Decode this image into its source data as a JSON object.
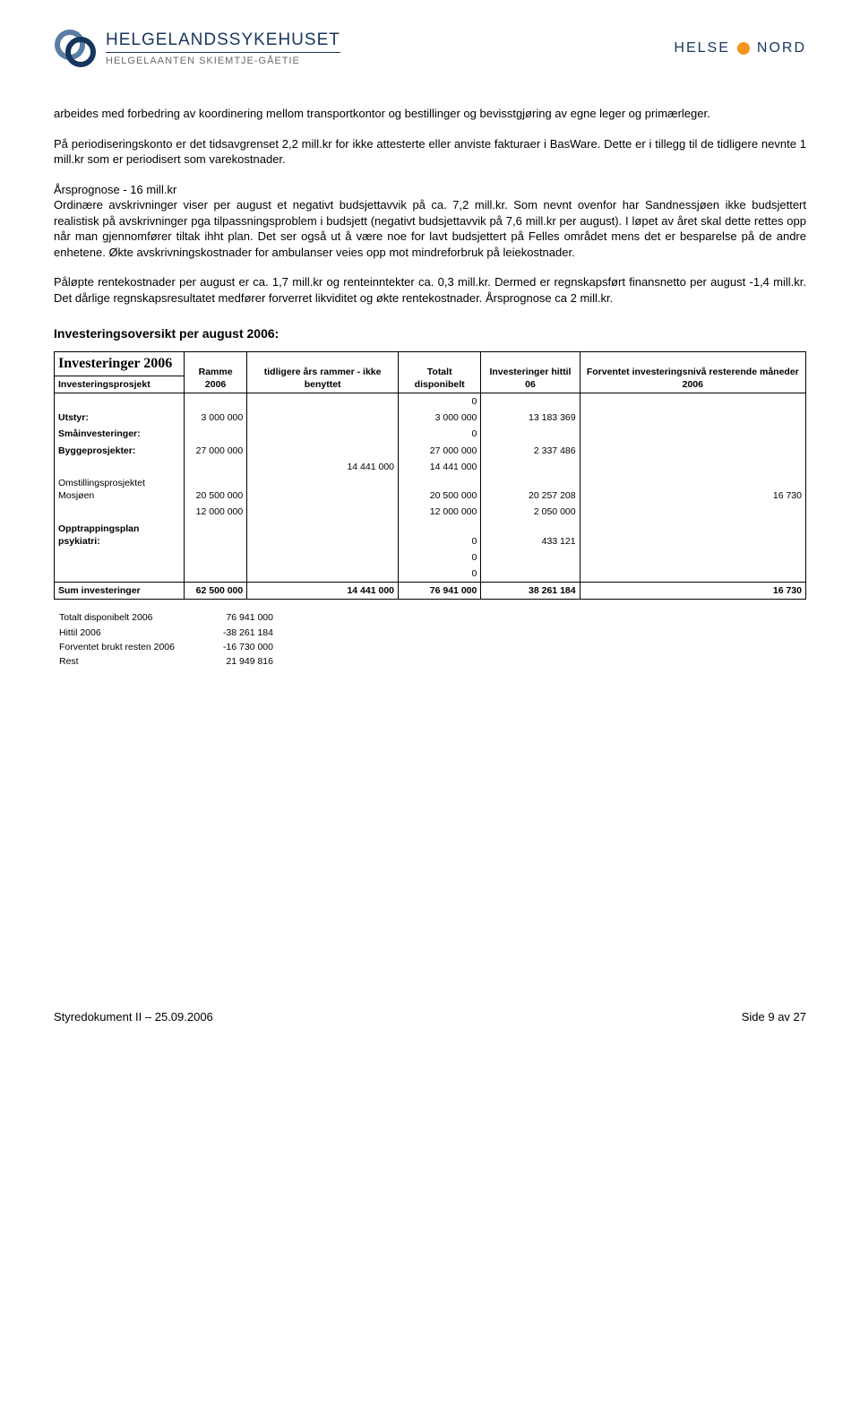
{
  "header": {
    "logo_title": "HELGELANDSSYKEHUSET",
    "logo_subtitle": "HELGELAANTEN SKIEMTJE-GÅETIE",
    "right_brand_1": "HELSE",
    "right_brand_2": "NORD",
    "colors": {
      "brand_blue": "#17365d",
      "brand_grey": "#6a6a6a",
      "nord_orange": "#f7941d"
    }
  },
  "paragraphs": {
    "p1": "arbeides med forbedring av koordinering mellom transportkontor og bestillinger og bevisstgjøring av egne leger og primærleger.",
    "p2": "På periodiseringskonto er det tidsavgrenset 2,2 mill.kr for ikke attesterte eller anviste fakturaer i BasWare. Dette er i tillegg til de tidligere nevnte 1 mill.kr som er periodisert som varekostnader.",
    "p3": "Årsprognose - 16 mill.kr",
    "p4": "Ordinære avskrivninger viser per august et negativt budsjettavvik på ca. 7,2 mill.kr. Som nevnt ovenfor har Sandnessjøen ikke budsjettert realistisk på avskrivninger pga tilpassningsproblem i budsjett (negativt budsjettavvik på 7,6 mill.kr per august). I løpet av året skal dette rettes opp når man gjennomfører tiltak ihht plan. Det ser også ut å være noe for lavt budsjettert på Felles området mens det er besparelse på de andre enhetene. Økte avskrivningskostnader for ambulanser veies opp mot mindreforbruk på leiekostnader.",
    "p5": "Påløpte rentekostnader per august er ca. 1,7 mill.kr og renteinntekter ca. 0,3 mill.kr. Dermed er regnskapsført finansnetto per august -1,4 mill.kr. Det dårlige regnskapsresultatet medfører forverret likviditet og økte rentekostnader. Årsprognose ca 2 mill.kr."
  },
  "section_title": "Investeringsoversikt per august 2006:",
  "table": {
    "title": "Investeringer 2006",
    "columns": {
      "c0": "Investeringsprosjekt",
      "c1": "Ramme 2006",
      "c2": "tidligere års rammer - ikke benyttet",
      "c3": "Totalt disponibelt",
      "c4": "Investeringer hittil 06",
      "c5": "Forventet investeringsnivå resterende måneder 2006"
    },
    "rows": [
      {
        "label": "",
        "bold": false,
        "c1": "",
        "c2": "",
        "c3": "0",
        "c4": "",
        "c5": ""
      },
      {
        "label": "Utstyr:",
        "bold": true,
        "c1": "3 000 000",
        "c2": "",
        "c3": "3 000 000",
        "c4": "13 183 369",
        "c5": ""
      },
      {
        "label": "Småinvesteringer:",
        "bold": true,
        "c1": "",
        "c2": "",
        "c3": "0",
        "c4": "",
        "c5": ""
      },
      {
        "label": "Byggeprosjekter:",
        "bold": true,
        "c1": "27 000 000",
        "c2": "",
        "c3": "27 000 000",
        "c4": "2 337 486",
        "c5": ""
      },
      {
        "label": "",
        "bold": false,
        "c1": "",
        "c2": "14 441 000",
        "c3": "14 441 000",
        "c4": "",
        "c5": ""
      },
      {
        "label": "Omstillingsprosjektet Mosjøen",
        "bold": false,
        "c1": "20 500 000",
        "c2": "",
        "c3": "20 500 000",
        "c4": "20 257 208",
        "c5": "16 730"
      },
      {
        "label": "",
        "bold": false,
        "c1": "12 000 000",
        "c2": "",
        "c3": "12 000 000",
        "c4": "2 050 000",
        "c5": ""
      },
      {
        "label": "Opptrappingsplan psykiatri:",
        "bold": true,
        "c1": "",
        "c2": "",
        "c3": "0",
        "c4": "433 121",
        "c5": ""
      },
      {
        "label": "",
        "bold": false,
        "c1": "",
        "c2": "",
        "c3": "0",
        "c4": "",
        "c5": ""
      },
      {
        "label": "",
        "bold": false,
        "c1": "",
        "c2": "",
        "c3": "0",
        "c4": "",
        "c5": ""
      }
    ],
    "sum": {
      "label": "Sum investeringer",
      "c1": "62 500 000",
      "c2": "14 441 000",
      "c3": "76 941 000",
      "c4": "38 261 184",
      "c5": "16 730"
    }
  },
  "summary": [
    {
      "label": "Totalt disponibelt 2006",
      "value": "76 941 000"
    },
    {
      "label": "Hittil 2006",
      "value": "-38 261 184"
    },
    {
      "label": "Forventet brukt resten 2006",
      "value": "-16 730 000"
    },
    {
      "label": "Rest",
      "value": "21 949 816"
    }
  ],
  "footer": {
    "left": "Styredokument II – 25.09.2006",
    "right": "Side 9 av 27"
  }
}
